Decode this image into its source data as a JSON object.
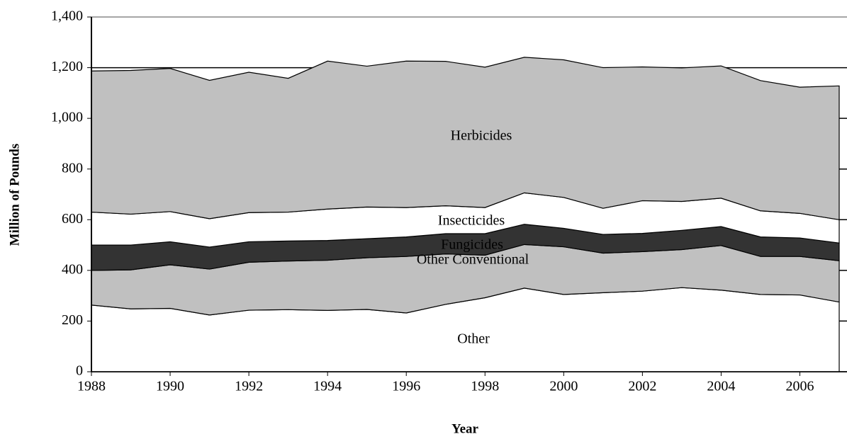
{
  "chart_data": {
    "type": "stacked_area",
    "x_label": "Year",
    "y_label": "Million of Pounds",
    "x": [
      1988,
      1989,
      1990,
      1991,
      1992,
      1993,
      1994,
      1995,
      1996,
      1997,
      1998,
      1999,
      2000,
      2001,
      2002,
      2003,
      2004,
      2005,
      2006,
      2007
    ],
    "series": [
      {
        "name": "Other",
        "color": "#ffffff",
        "values": [
          263,
          248,
          250,
          224,
          243,
          245,
          242,
          246,
          232,
          266,
          292,
          330,
          305,
          312,
          318,
          332,
          322,
          305,
          303,
          275
        ]
      },
      {
        "name": "Other Conventional",
        "color": "#c0c0c0",
        "values": [
          137,
          154,
          172,
          181,
          189,
          192,
          198,
          204,
          223,
          199,
          168,
          172,
          188,
          156,
          156,
          150,
          176,
          150,
          152,
          163
        ]
      },
      {
        "name": "Fungicides",
        "color": "#333333",
        "values": [
          100,
          98,
          91,
          87,
          81,
          79,
          78,
          75,
          77,
          80,
          85,
          80,
          73,
          74,
          72,
          76,
          75,
          77,
          73,
          70
        ]
      },
      {
        "name": "Insecticides",
        "color": "#ffffff",
        "values": [
          130,
          122,
          119,
          112,
          115,
          114,
          124,
          125,
          116,
          110,
          103,
          124,
          122,
          103,
          129,
          114,
          112,
          103,
          97,
          92
        ]
      },
      {
        "name": "Herbicides",
        "color": "#c0c0c0",
        "values": [
          557,
          567,
          565,
          546,
          554,
          528,
          584,
          556,
          578,
          570,
          554,
          535,
          543,
          555,
          528,
          527,
          522,
          514,
          498,
          528
        ]
      }
    ],
    "xlim": [
      1988,
      2007
    ],
    "xticks": [
      1988,
      1990,
      1992,
      1994,
      1996,
      1998,
      2000,
      2002,
      2004,
      2006
    ],
    "ylim": [
      0,
      1400
    ],
    "yticks": [
      0,
      200,
      400,
      600,
      800,
      {
        "value": 1000,
        "label": "1,000"
      },
      {
        "value": 1200,
        "label": "1,200"
      },
      {
        "value": 1400,
        "label": "1,400"
      }
    ],
    "grid": true
  }
}
